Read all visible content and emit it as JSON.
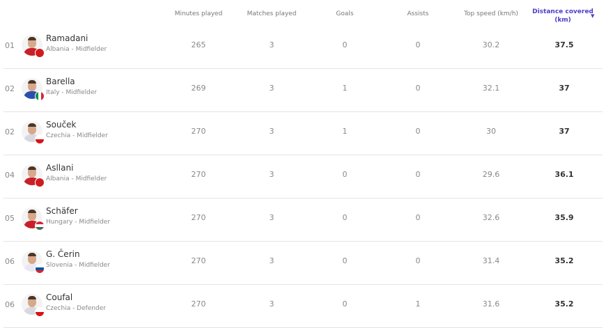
{
  "columns": {
    "minutes": "Minutes played",
    "matches": "Matches played",
    "goals": "Goals",
    "assists": "Assists",
    "top_speed": "Top speed (km/h)",
    "distance": "Distance covered (km)"
  },
  "sort": {
    "column": "distance",
    "direction": "descending",
    "icon": "caret-down-icon",
    "color": "#4a3fc7"
  },
  "players": [
    {
      "rank": "01",
      "name": "Ramadani",
      "info": "Albania - Midfielder",
      "minutes": "265",
      "matches": "3",
      "goals": "0",
      "assists": "0",
      "top_speed": "30.2",
      "distance": "37.5",
      "shirt": "#c8202a",
      "flag": "#d01c1f"
    },
    {
      "rank": "02",
      "name": "Barella",
      "info": "Italy - Midfielder",
      "minutes": "269",
      "matches": "3",
      "goals": "1",
      "assists": "0",
      "top_speed": "32.1",
      "distance": "37",
      "shirt": "#2a4fb0",
      "flag": "linear-gradient(90deg,#009246 33%,#fff 33% 66%,#ce2b37 66%)"
    },
    {
      "rank": "02",
      "name": "Souček",
      "info": "Czechia - Midfielder",
      "minutes": "270",
      "matches": "3",
      "goals": "1",
      "assists": "0",
      "top_speed": "30",
      "distance": "37",
      "shirt": "#d8d8e0",
      "flag": "linear-gradient(180deg,#fff 50%,#d7141a 50%)"
    },
    {
      "rank": "04",
      "name": "Asllani",
      "info": "Albania - Midfielder",
      "minutes": "270",
      "matches": "3",
      "goals": "0",
      "assists": "0",
      "top_speed": "29.6",
      "distance": "36.1",
      "shirt": "#c8202a",
      "flag": "#d01c1f"
    },
    {
      "rank": "05",
      "name": "Schäfer",
      "info": "Hungary - Midfielder",
      "minutes": "270",
      "matches": "3",
      "goals": "0",
      "assists": "0",
      "top_speed": "32.6",
      "distance": "35.9",
      "shirt": "#c8202a",
      "flag": "linear-gradient(180deg,#cd2a3e 33%,#fff 33% 66%,#436f4d 66%)"
    },
    {
      "rank": "06",
      "name": "G. Čerin",
      "info": "Slovenia - Midfielder",
      "minutes": "270",
      "matches": "3",
      "goals": "0",
      "assists": "0",
      "top_speed": "31.4",
      "distance": "35.2",
      "shirt": "#e8e8ee",
      "flag": "linear-gradient(180deg,#fff 33%,#0056a5 33% 66%,#ed1c24 66%)"
    },
    {
      "rank": "06",
      "name": "Coufal",
      "info": "Czechia - Defender",
      "minutes": "270",
      "matches": "3",
      "goals": "0",
      "assists": "1",
      "top_speed": "31.6",
      "distance": "35.2",
      "shirt": "#d8d8e0",
      "flag": "linear-gradient(180deg,#fff 50%,#d7141a 50%)"
    }
  ]
}
